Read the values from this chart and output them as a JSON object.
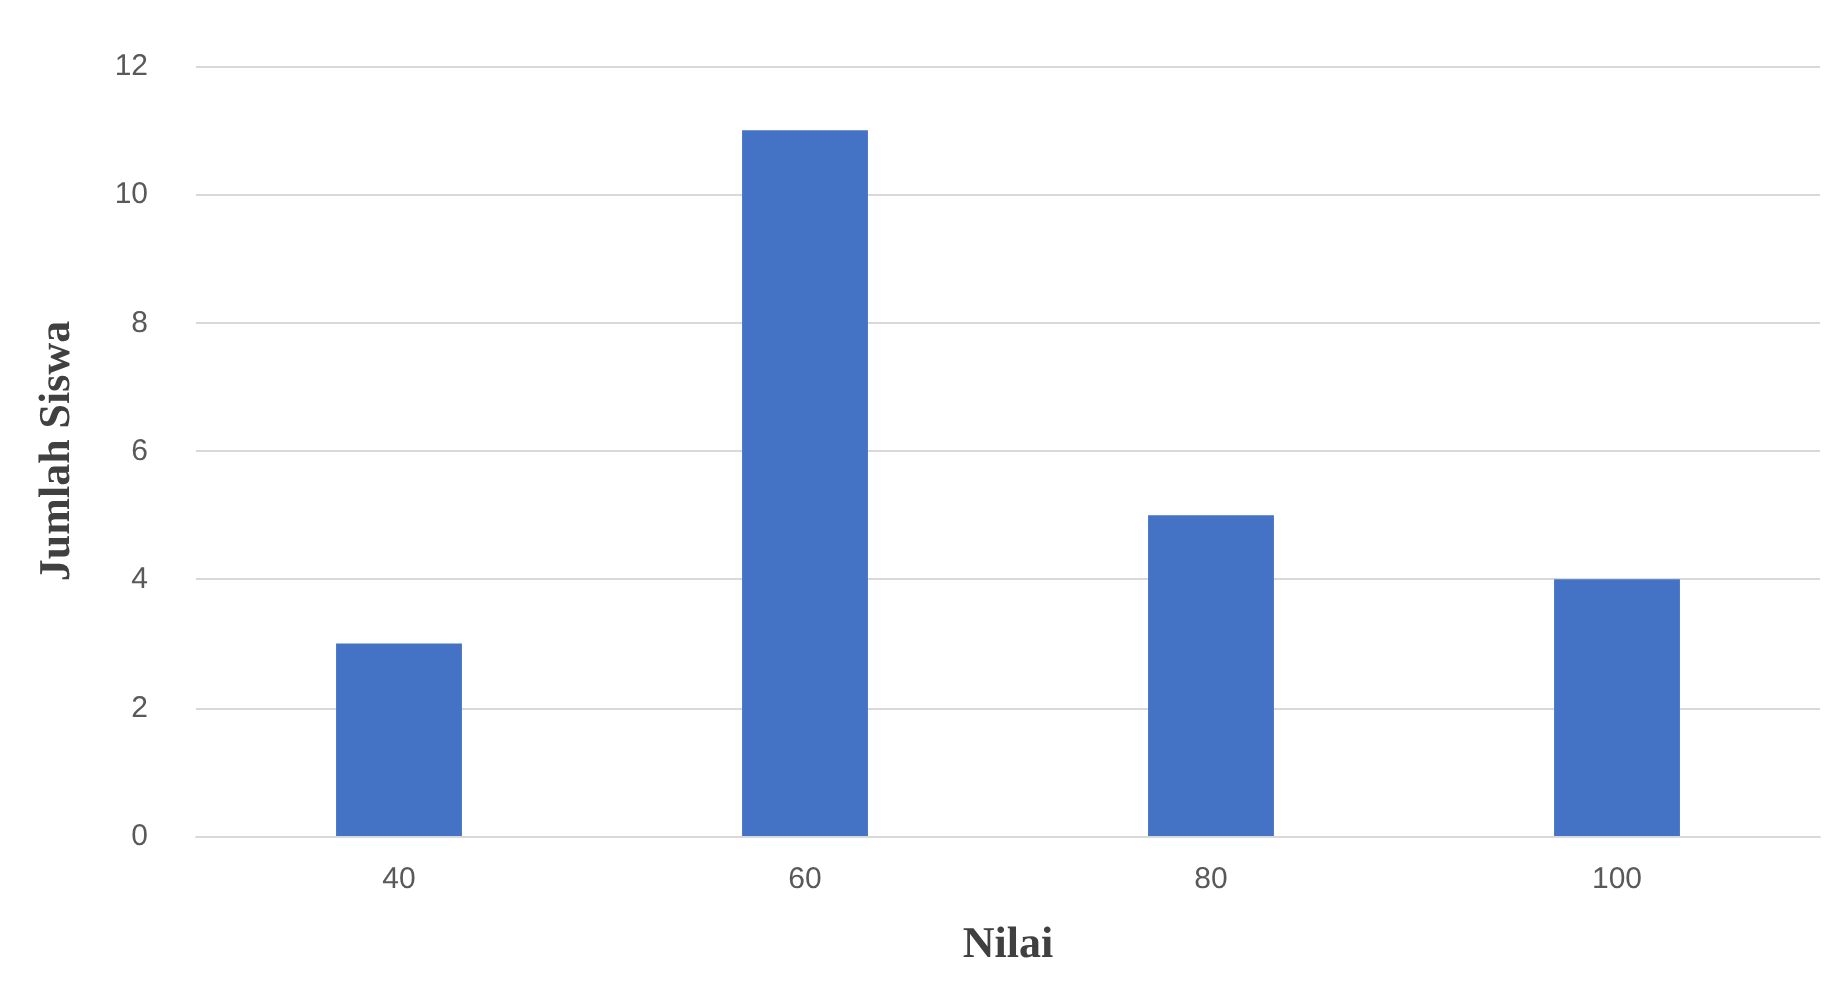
{
  "chart_data": {
    "type": "bar",
    "xlabel": "Nilai",
    "ylabel": "Jumlah Siswa",
    "categories": [
      "40",
      "60",
      "80",
      "100"
    ],
    "values": [
      3,
      11,
      5,
      4
    ],
    "color": "#4472c4",
    "ylim": [
      0,
      12
    ],
    "yticks": [
      0,
      2,
      4,
      6,
      8,
      10,
      12
    ],
    "grid": "y"
  }
}
